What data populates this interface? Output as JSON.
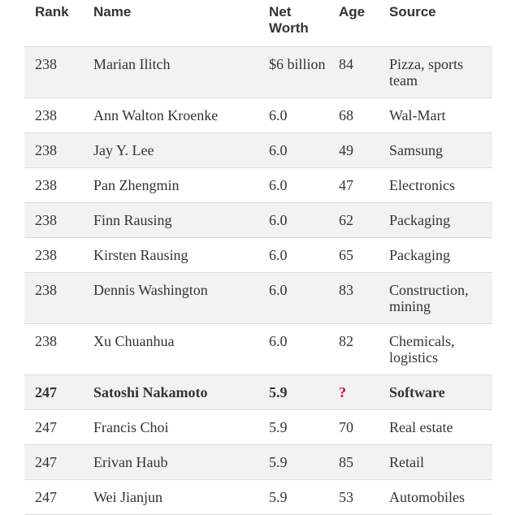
{
  "table": {
    "headers": {
      "rank": "Rank",
      "name": "Name",
      "net_worth": "Net Worth",
      "age": "Age",
      "source": "Source"
    },
    "rows": [
      {
        "rank": "238",
        "name": "Marian Ilitch",
        "net_worth": "$6 billion",
        "age": "84",
        "source": "Pizza, sports team"
      },
      {
        "rank": "238",
        "name": "Ann Walton Kroenke",
        "net_worth": "6.0",
        "age": "68",
        "source": "Wal-Mart"
      },
      {
        "rank": "238",
        "name": "Jay Y. Lee",
        "net_worth": "6.0",
        "age": "49",
        "source": "Samsung"
      },
      {
        "rank": "238",
        "name": "Pan Zhengmin",
        "net_worth": "6.0",
        "age": "47",
        "source": "Electronics"
      },
      {
        "rank": "238",
        "name": "Finn Rausing",
        "net_worth": "6.0",
        "age": "62",
        "source": "Packaging"
      },
      {
        "rank": "238",
        "name": "Kirsten Rausing",
        "net_worth": "6.0",
        "age": "65",
        "source": "Packaging"
      },
      {
        "rank": "238",
        "name": "Dennis Washington",
        "net_worth": "6.0",
        "age": "83",
        "source": "Construction, mining"
      },
      {
        "rank": "238",
        "name": "Xu Chuanhua",
        "net_worth": "6.0",
        "age": "82",
        "source": "Chemicals, logistics"
      },
      {
        "rank": "247",
        "name": "Satoshi Nakamoto",
        "net_worth": "5.9",
        "age": "?",
        "source": "Software"
      },
      {
        "rank": "247",
        "name": "Francis Choi",
        "net_worth": "5.9",
        "age": "70",
        "source": "Real estate"
      },
      {
        "rank": "247",
        "name": "Erivan Haub",
        "net_worth": "5.9",
        "age": "85",
        "source": "Retail"
      },
      {
        "rank": "247",
        "name": "Wei Jianjun",
        "net_worth": "5.9",
        "age": "53",
        "source": "Automobiles"
      }
    ]
  },
  "colors": {
    "alt_row": "#f2f2f2",
    "text": "#333333",
    "question_mark": "#c8102e",
    "border": "#dcdcdc"
  }
}
